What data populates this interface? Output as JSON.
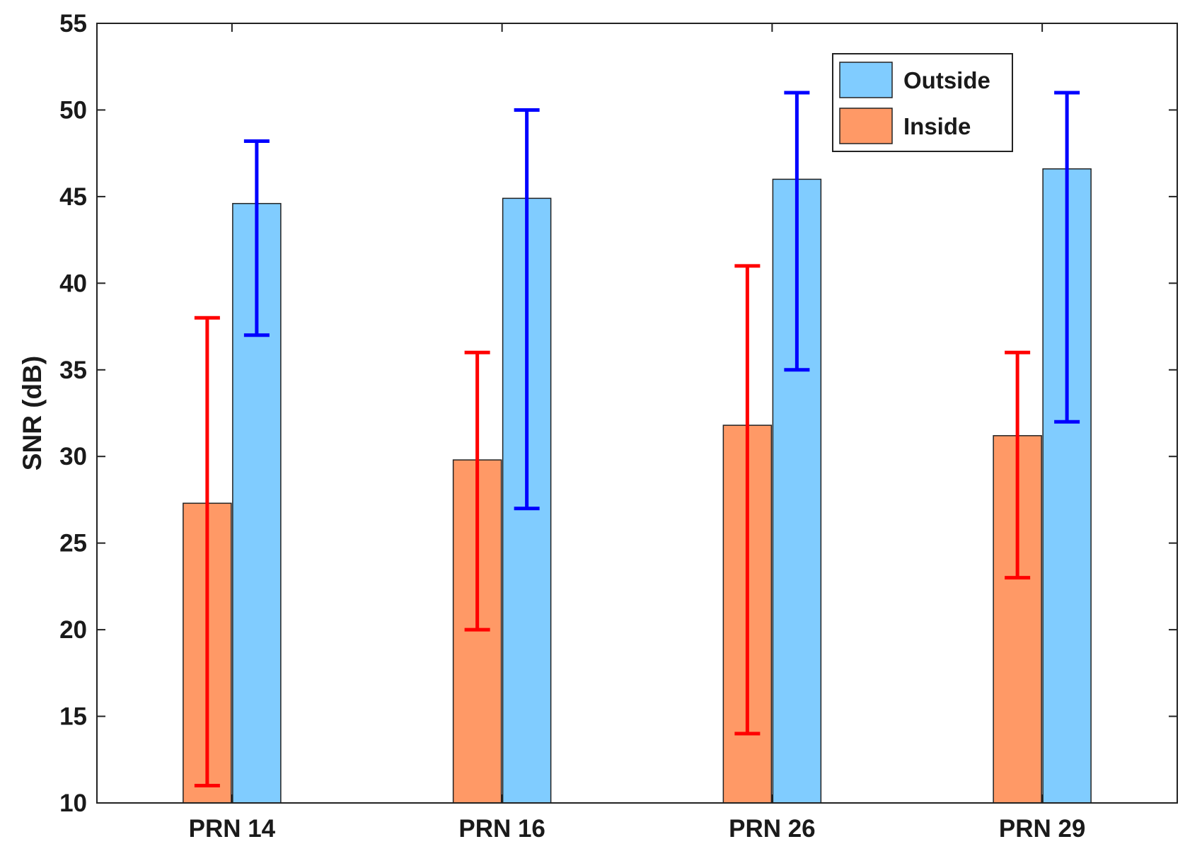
{
  "chart_data": {
    "type": "bar",
    "title": "",
    "xlabel": "",
    "ylabel": "SNR (dB)",
    "ylim": [
      10,
      55
    ],
    "yticks": [
      10,
      15,
      20,
      25,
      30,
      35,
      40,
      45,
      50,
      55
    ],
    "grid": false,
    "legend_position": "top-right",
    "categories": [
      "PRN 14",
      "PRN 16",
      "PRN 26",
      "PRN 29"
    ],
    "series": [
      {
        "name": "Inside",
        "color": "#FF9966",
        "error_color": "#FF0000",
        "values": [
          27.3,
          29.8,
          31.8,
          31.2
        ],
        "error_low": [
          11,
          20,
          14,
          23
        ],
        "error_high": [
          38,
          36,
          41,
          36
        ]
      },
      {
        "name": "Outside",
        "color": "#80CCFF",
        "error_color": "#0000FF",
        "values": [
          44.6,
          44.9,
          46.0,
          46.6
        ],
        "error_low": [
          37,
          27,
          35,
          32
        ],
        "error_high": [
          48.2,
          50,
          51,
          51
        ]
      }
    ],
    "legend_order": [
      "Outside",
      "Inside"
    ]
  }
}
